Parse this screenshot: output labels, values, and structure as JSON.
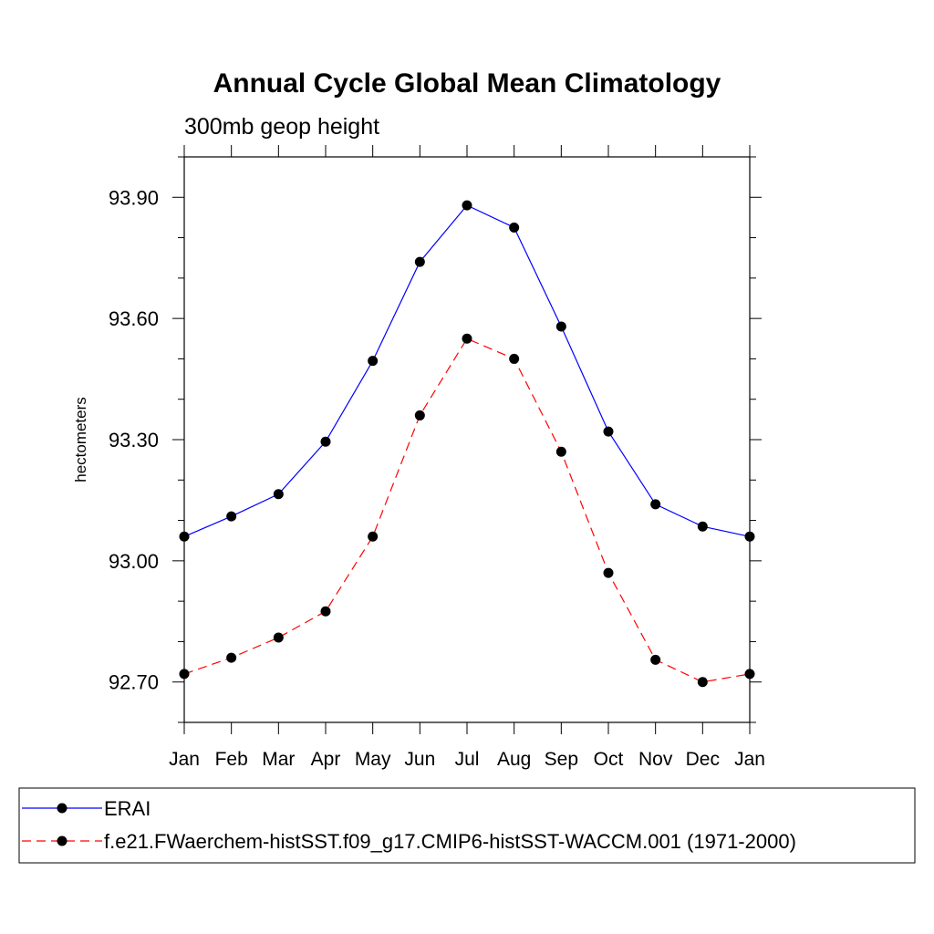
{
  "chart_data": {
    "type": "line",
    "title": "Annual Cycle Global Mean Climatology",
    "subtitle": "300mb geop height",
    "xlabel": "",
    "ylabel": "hectometers",
    "categories": [
      "Jan",
      "Feb",
      "Mar",
      "Apr",
      "May",
      "Jun",
      "Jul",
      "Aug",
      "Sep",
      "Oct",
      "Nov",
      "Dec",
      "Jan"
    ],
    "ylim": [
      92.6,
      94.0
    ],
    "yticks": [
      92.7,
      93.0,
      93.3,
      93.6,
      93.9
    ],
    "ytick_labels": [
      "92.70",
      "93.00",
      "93.30",
      "93.60",
      "93.90"
    ],
    "y_minor_step": 0.1,
    "grid": false,
    "legend_position": "bottom",
    "series": [
      {
        "name": "ERAI",
        "color": "#0000ff",
        "dash": "solid",
        "values": [
          93.06,
          93.11,
          93.165,
          93.295,
          93.495,
          93.74,
          93.88,
          93.825,
          93.58,
          93.32,
          93.14,
          93.085,
          93.06
        ]
      },
      {
        "name": "f.e21.FWaerchem-histSST.f09_g17.CMIP6-histSST-WACCM.001 (1971-2000)",
        "color": "#ff0000",
        "dash": "dashed",
        "values": [
          92.72,
          92.76,
          92.81,
          92.875,
          93.06,
          93.36,
          93.55,
          93.5,
          93.27,
          92.97,
          92.755,
          92.7,
          92.72
        ]
      }
    ]
  }
}
